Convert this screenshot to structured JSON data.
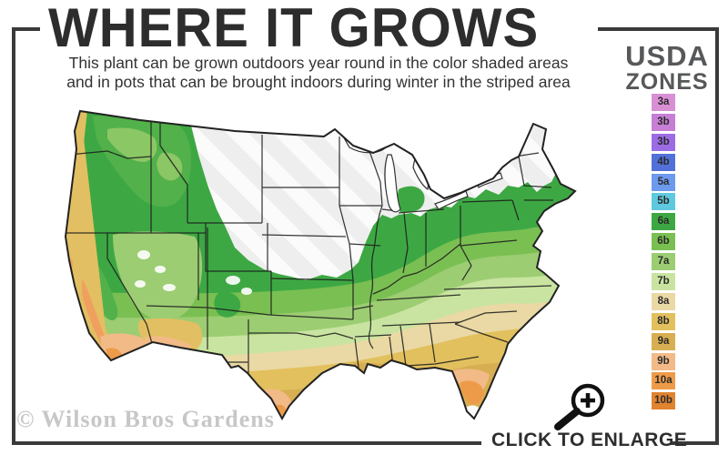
{
  "title": "WHERE IT GROWS",
  "subtitle": {
    "line1": "This plant can be grown outdoors year round in the color shaded areas",
    "line2": "and in pots that can be brought indoors during winter in the striped area"
  },
  "legend": {
    "heading_line1": "USDA",
    "heading_line2": "ZONES",
    "zones": [
      {
        "label": "3a",
        "color": "#d98fd3"
      },
      {
        "label": "3b",
        "color": "#c77fd6"
      },
      {
        "label": "3b",
        "color": "#9b6ce4"
      },
      {
        "label": "4b",
        "color": "#5271d8"
      },
      {
        "label": "5a",
        "color": "#6d99ee"
      },
      {
        "label": "5b",
        "color": "#5ec9de"
      },
      {
        "label": "6a",
        "color": "#3da843"
      },
      {
        "label": "6b",
        "color": "#7abf52"
      },
      {
        "label": "7a",
        "color": "#9ccd72"
      },
      {
        "label": "7b",
        "color": "#c9e4a0"
      },
      {
        "label": "8a",
        "color": "#ead9a4"
      },
      {
        "label": "8b",
        "color": "#e2c05e"
      },
      {
        "label": "9a",
        "color": "#d7ae52"
      },
      {
        "label": "9b",
        "color": "#f2ba87"
      },
      {
        "label": "10a",
        "color": "#ee9b49"
      },
      {
        "label": "10b",
        "color": "#e08430"
      }
    ]
  },
  "watermark": "© Wilson Bros Gardens",
  "enlarge_label": "CLICK TO ENLARGE",
  "map_colors": {
    "zone_6a": "#3da843",
    "zone_6b": "#7abf52",
    "zone_7a": "#9ccd72",
    "zone_7b": "#c9e4a0",
    "zone_8a": "#ead9a4",
    "zone_8b": "#e2c05e",
    "zone_9a": "#d7ae52",
    "zone_9b": "#f2ba87",
    "zone_10a": "#ee9b49",
    "zone_10b": "#e08430",
    "unshaded_base": "#eeeeee",
    "unshaded_stripe": "#fbfbfb",
    "state_border": "#1d1d1d",
    "frame": "#3a3a3a",
    "west_green": "#52b14a",
    "west_green_light": "#8cc765",
    "coast_gold": "#e2bf62",
    "coast_orange": "#efa05f"
  }
}
